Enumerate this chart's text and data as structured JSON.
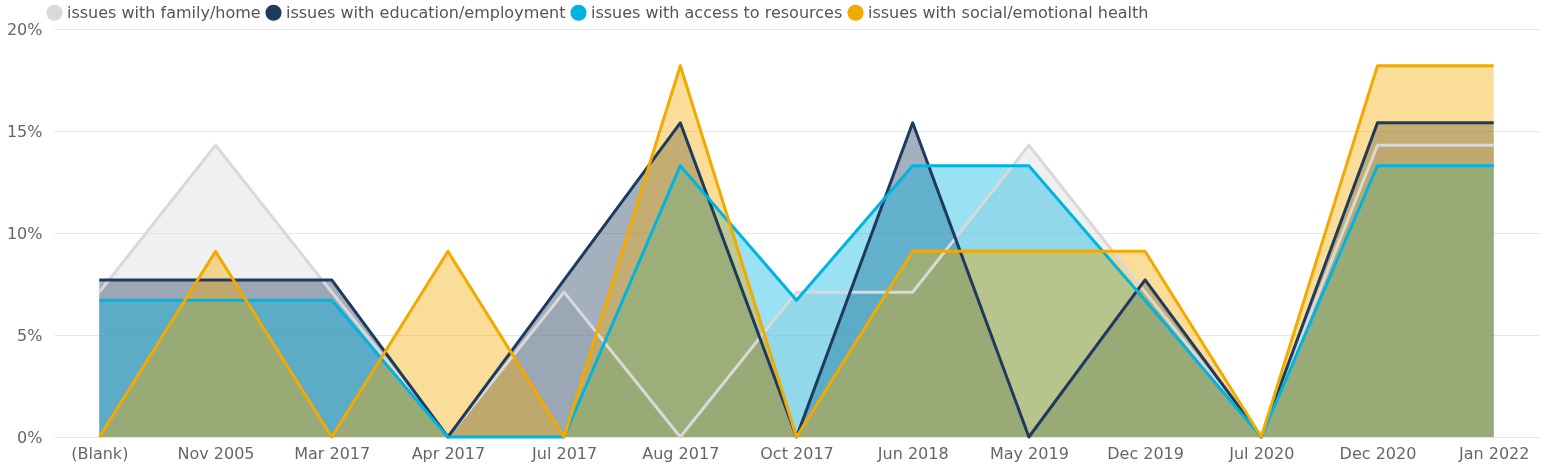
{
  "chart_data": {
    "type": "area",
    "categories": [
      "(Blank)",
      "Nov 2005",
      "Mar 2017",
      "Apr 2017",
      "Jul 2017",
      "Aug 2017",
      "Oct 2017",
      "Jun 2018",
      "May 2019",
      "Dec 2019",
      "Jul 2020",
      "Dec 2020",
      "Jan 2022"
    ],
    "series": [
      {
        "name": "issues with family/home",
        "color": "#d9d9d9",
        "values": [
          7.1,
          14.3,
          7.1,
          0,
          7.1,
          0,
          7.1,
          7.1,
          14.3,
          7.1,
          0,
          14.3,
          14.3
        ]
      },
      {
        "name": "issues with education/employment",
        "color": "#1f3a5f",
        "values": [
          7.7,
          7.7,
          7.7,
          0,
          7.7,
          15.4,
          0,
          15.4,
          0,
          7.7,
          0,
          15.4,
          15.4
        ]
      },
      {
        "name": "issues with access to resources",
        "color": "#00b4e0",
        "values": [
          6.7,
          6.7,
          6.7,
          0,
          0,
          13.3,
          6.7,
          13.3,
          13.3,
          6.7,
          0,
          13.3,
          13.3
        ]
      },
      {
        "name": "issues with social/emotional health",
        "color": "#f2a900",
        "values": [
          0,
          9.1,
          0,
          9.1,
          0,
          18.2,
          0,
          9.1,
          9.1,
          9.1,
          0,
          18.2,
          18.2
        ]
      }
    ],
    "ylim": [
      0,
      20
    ],
    "yticks": [
      {
        "value": 0,
        "label": "0%"
      },
      {
        "value": 5,
        "label": "5%"
      },
      {
        "value": 10,
        "label": "10%"
      },
      {
        "value": 15,
        "label": "15%"
      },
      {
        "value": 20,
        "label": "20%"
      }
    ],
    "grid": "y",
    "legend": "top left",
    "marker": "none",
    "line_style": "solid"
  }
}
